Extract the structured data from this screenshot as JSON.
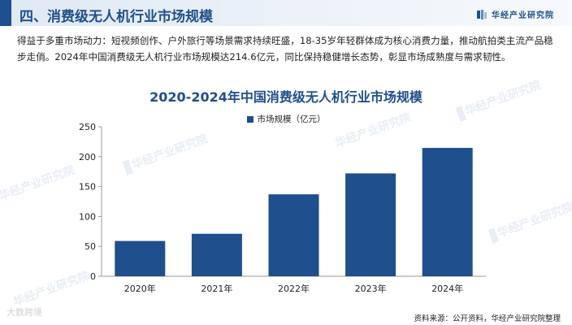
{
  "header": {
    "title": "四、消费级无人机行业市场规模",
    "brand": "华经产业研究院"
  },
  "description": "得益于多重市场动力：短视频创作、户外旅行等场景需求持续旺盛，18-35岁年轻群体成为核心消费力量，推动航拍类主流产品稳步走俏。2024年中国消费级无人机行业市场规模达214.6亿元，同比保持稳健增长态势，彰显市场成熟度与需求韧性。",
  "watermark": "华经产业研究院",
  "chart_data": {
    "type": "bar",
    "title": "2020-2024年中国消费级无人机行业市场规模",
    "categories": [
      "2020年",
      "2021年",
      "2022年",
      "2023年",
      "2024年"
    ],
    "series": [
      {
        "name": "市场规模（亿元）",
        "values": [
          59,
          71,
          137,
          172,
          214.6
        ]
      }
    ],
    "ylim": [
      0,
      250
    ],
    "yticks": [
      0,
      50,
      100,
      150,
      200,
      250
    ],
    "xlabel": "",
    "ylabel": "",
    "legend_position": "top-center",
    "grid": false,
    "bar_color": "#1f4f8c"
  },
  "source": "资料来源：公开资料，华经产业研究院整理",
  "footer_logo": "大数跨境"
}
